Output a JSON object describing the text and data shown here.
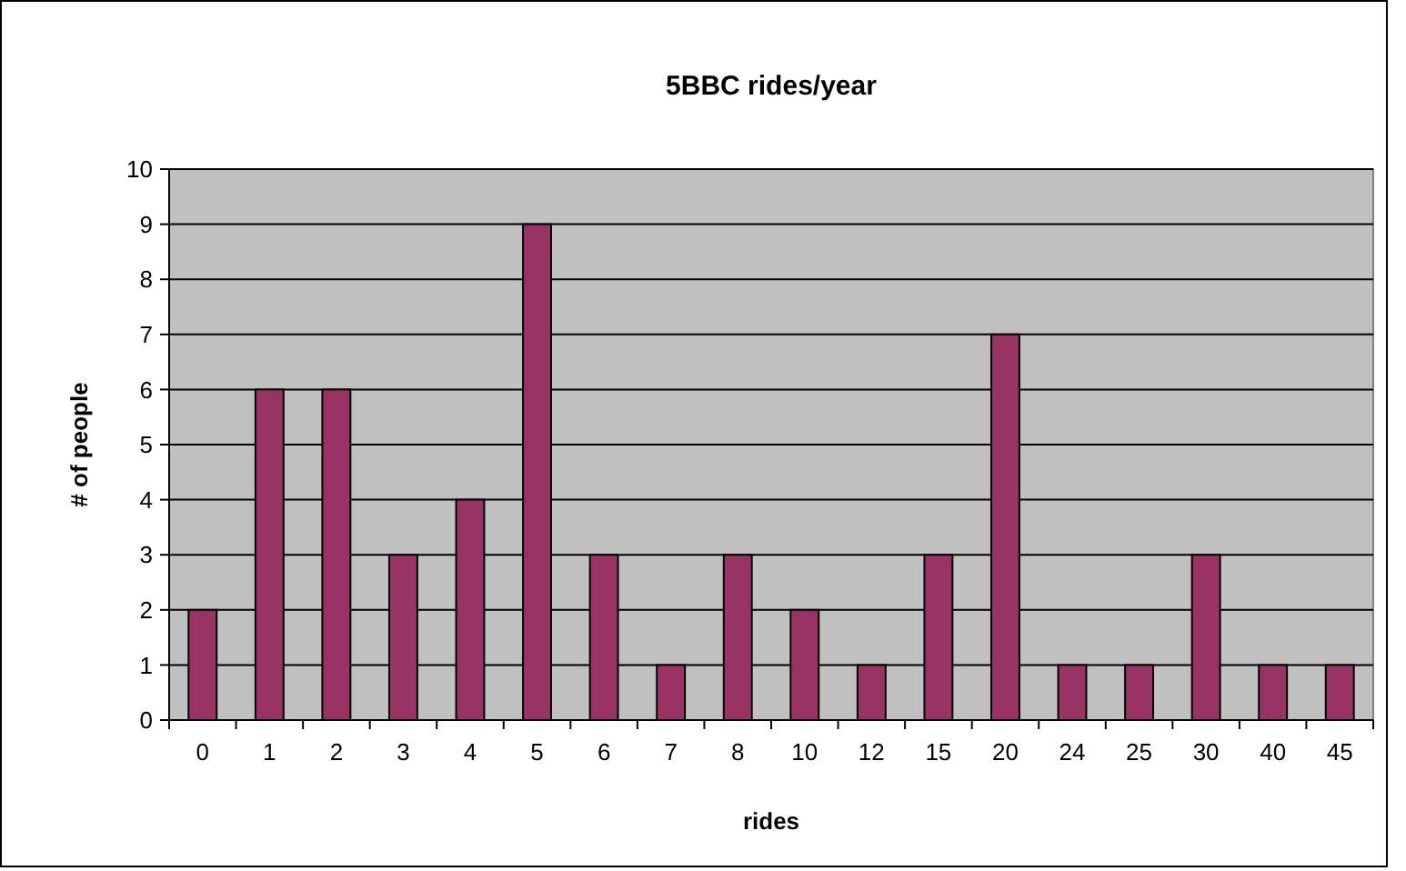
{
  "chart_data": {
    "type": "bar",
    "title": "5BBC rides/year",
    "xlabel": "rides",
    "ylabel": "# of people",
    "categories": [
      "0",
      "1",
      "2",
      "3",
      "4",
      "5",
      "6",
      "7",
      "8",
      "10",
      "12",
      "15",
      "20",
      "24",
      "25",
      "30",
      "40",
      "45"
    ],
    "values": [
      2,
      6,
      6,
      3,
      4,
      9,
      3,
      1,
      3,
      2,
      1,
      3,
      7,
      1,
      1,
      3,
      1,
      1
    ],
    "color": "#993366",
    "ylim": [
      0,
      10
    ],
    "yticks": [
      0,
      1,
      2,
      3,
      4,
      5,
      6,
      7,
      8,
      9,
      10
    ],
    "grid": "y"
  }
}
